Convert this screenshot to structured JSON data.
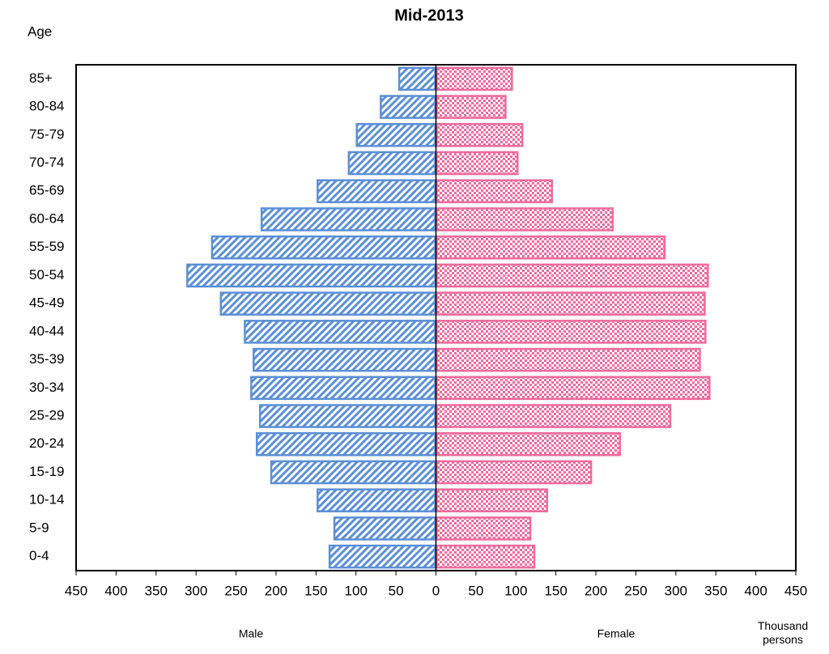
{
  "chart_data": {
    "type": "pyramid",
    "title": "Mid-2013",
    "y_label": "Age",
    "x_unit_label": "Thousand persons",
    "categories": [
      "0-4",
      "5-9",
      "10-14",
      "15-19",
      "20-24",
      "25-29",
      "30-34",
      "35-39",
      "40-44",
      "45-49",
      "50-54",
      "55-59",
      "60-64",
      "65-69",
      "70-74",
      "75-79",
      "80-84",
      "85+"
    ],
    "series": [
      {
        "name": "Male",
        "color": "#5b8fd6",
        "values": [
          134,
          128,
          149,
          207,
          225,
          221,
          232,
          229,
          240,
          270,
          312,
          281,
          219,
          149,
          110,
          100,
          70,
          47
        ]
      },
      {
        "name": "Female",
        "color": "#f06a9a",
        "values": [
          124,
          119,
          140,
          195,
          231,
          294,
          343,
          331,
          338,
          337,
          341,
          287,
          222,
          146,
          103,
          109,
          88,
          96
        ]
      }
    ],
    "xlim": [
      -450,
      450
    ],
    "xticks": [
      {
        "value": -450,
        "label": "450"
      },
      {
        "value": -400,
        "label": "400"
      },
      {
        "value": -350,
        "label": "350"
      },
      {
        "value": -300,
        "label": "300"
      },
      {
        "value": -250,
        "label": "250"
      },
      {
        "value": -200,
        "label": "200"
      },
      {
        "value": -150,
        "label": "150"
      },
      {
        "value": -100,
        "label": "100"
      },
      {
        "value": -50,
        "label": "50"
      },
      0,
      50,
      100,
      150,
      200,
      250,
      300,
      350,
      400,
      450
    ]
  }
}
